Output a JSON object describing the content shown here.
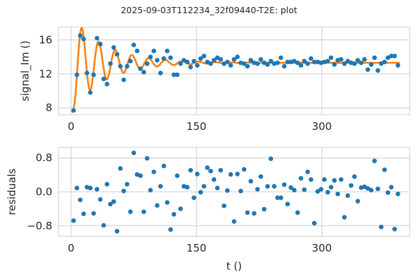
{
  "figure": {
    "suptitle": "2025-09-03T112234_32f09440-T2E: plot"
  },
  "colors": {
    "points": "#1f77b4",
    "fit": "#ff7f0e",
    "grid": "#cccccc",
    "spine": "#cccccc"
  },
  "chart_data": [
    {
      "type": "scatter",
      "panel": "top",
      "xlabel": "",
      "ylabel": "signal_Im ()",
      "xlim": [
        -15,
        405
      ],
      "ylim": [
        7.2,
        17.5
      ],
      "xticks": [
        0,
        150,
        300
      ],
      "xtick_labels": [
        "0",
        "150",
        "300"
      ],
      "yticks": [
        8,
        12,
        16
      ],
      "ytick_labels": [
        "8",
        "12",
        "16"
      ],
      "grid": true,
      "series": [
        {
          "kind": "scatter",
          "x": [
            3,
            7,
            11,
            15,
            19,
            23,
            27,
            31,
            35,
            39,
            43,
            47,
            51,
            55,
            59,
            63,
            67,
            71,
            75,
            79,
            83,
            87,
            91,
            95,
            99,
            103,
            107,
            111,
            115,
            119,
            123,
            127,
            131,
            135,
            139,
            143,
            147,
            151,
            155,
            159,
            163,
            167,
            171,
            175,
            179,
            183,
            187,
            191,
            195,
            199,
            203,
            207,
            211,
            215,
            219,
            223,
            227,
            231,
            235,
            239,
            243,
            247,
            251,
            255,
            259,
            263,
            267,
            271,
            275,
            279,
            283,
            287,
            291,
            295,
            299,
            303,
            307,
            311,
            315,
            319,
            323,
            327,
            331,
            335,
            339,
            343,
            347,
            351,
            355,
            359,
            363,
            367,
            371,
            375,
            379,
            383,
            387,
            391
          ],
          "y": [
            7.7,
            11.9,
            16.5,
            16.1,
            12.1,
            9.8,
            11.9,
            16.2,
            15.5,
            11.4,
            10.8,
            13.2,
            15.1,
            14.3,
            12.9,
            11.3,
            12.9,
            13.5,
            15.4,
            14.7,
            12.6,
            12.2,
            13.2,
            14.0,
            14.7,
            13.6,
            12.1,
            13.8,
            14.7,
            13.9,
            11.9,
            11.9,
            13.2,
            13.6,
            13.4,
            12.8,
            13.5,
            13.0,
            13.8,
            14.1,
            13.4,
            13.2,
            13.6,
            13.9,
            13.7,
            13.2,
            13.4,
            13.0,
            13.7,
            14.0,
            13.3,
            13.2,
            12.9,
            13.6,
            13.3,
            13.2,
            13.7,
            13.3,
            13.1,
            13.5,
            13.2,
            13.3,
            13.9,
            12.9,
            13.4,
            13.4,
            13.5,
            13.3,
            13.0,
            13.5,
            13.2,
            13.8,
            13.4,
            13.4,
            13.3,
            13.4,
            13.5,
            13.9,
            13.1,
            13.6,
            13.7,
            13.2,
            13.5,
            13.3,
            13.2,
            13.6,
            13.3,
            13.7,
            12.5,
            13.1,
            13.9,
            12.4,
            13.2,
            13.4,
            13.9,
            14.1,
            14.1,
            13.0
          ]
        },
        {
          "kind": "line",
          "model": "damped_cosine",
          "baseline": 13.3,
          "amplitude": -5.3,
          "period": 20,
          "decay_time": 40,
          "x_start": 3,
          "x_end": 393
        }
      ]
    },
    {
      "type": "scatter",
      "panel": "bottom",
      "xlabel": "t ()",
      "ylabel": "residuals",
      "xlim": [
        -15,
        405
      ],
      "ylim": [
        -1.05,
        1.05
      ],
      "xticks": [
        0,
        150,
        300
      ],
      "xtick_labels": [
        "0",
        "150",
        "300"
      ],
      "yticks": [
        -0.8,
        0.0,
        0.8
      ],
      "ytick_labels": [
        "−0.8",
        "0.0",
        "0.8"
      ],
      "grid": true,
      "series": [
        {
          "kind": "scatter",
          "x": [
            3,
            7,
            11,
            15,
            19,
            23,
            27,
            31,
            35,
            39,
            43,
            47,
            51,
            55,
            59,
            63,
            67,
            71,
            75,
            79,
            83,
            87,
            91,
            95,
            99,
            103,
            107,
            111,
            115,
            119,
            123,
            127,
            131,
            135,
            139,
            143,
            147,
            151,
            155,
            159,
            163,
            167,
            171,
            175,
            179,
            183,
            187,
            191,
            195,
            199,
            203,
            207,
            211,
            215,
            219,
            223,
            227,
            231,
            235,
            239,
            243,
            247,
            251,
            255,
            259,
            263,
            267,
            271,
            275,
            279,
            283,
            287,
            291,
            295,
            299,
            303,
            307,
            311,
            315,
            319,
            323,
            327,
            331,
            335,
            339,
            343,
            347,
            351,
            355,
            359,
            363,
            367,
            371,
            375,
            379,
            383,
            387,
            391
          ],
          "y": [
            -0.68,
            0.09,
            -0.19,
            -0.52,
            0.11,
            0.09,
            -0.51,
            0.06,
            -0.18,
            -0.79,
            0.18,
            -0.29,
            -0.23,
            -0.93,
            0.55,
            0.02,
            0.18,
            -0.47,
            0.92,
            0.41,
            0.38,
            -0.47,
            0.79,
            0.04,
            0.47,
            -0.32,
            0.13,
            0.61,
            -0.25,
            -0.89,
            -0.53,
            0.38,
            -0.4,
            0.13,
            0.11,
            0.51,
            -0.14,
            0.42,
            -0.01,
            0.13,
            0.57,
            0.49,
            0.29,
            0.09,
            0.51,
            -0.33,
            0.03,
            0.41,
            -0.7,
            0.42,
            0.02,
            0.53,
            -0.49,
            0.25,
            -0.51,
            0.06,
            0.36,
            -0.41,
            0.13,
            0.78,
            0.13,
            -0.14,
            -0.14,
            0.17,
            -0.29,
            0.1,
            0.04,
            -0.49,
            0.32,
            0.05,
            0.47,
            0.29,
            -0.74,
            0.01,
            0.06,
            0.29,
            -0.01,
            0.11,
            0.27,
            -0.05,
            0.29,
            -0.6,
            -0.09,
            0.15,
            0.36,
            -0.22,
            0.1,
            0.12,
            0.08,
            0.04,
            0.73,
            0.07,
            -0.83,
            0.52,
            -0.02,
            0.11,
            -0.88,
            -0.05
          ]
        }
      ]
    }
  ]
}
